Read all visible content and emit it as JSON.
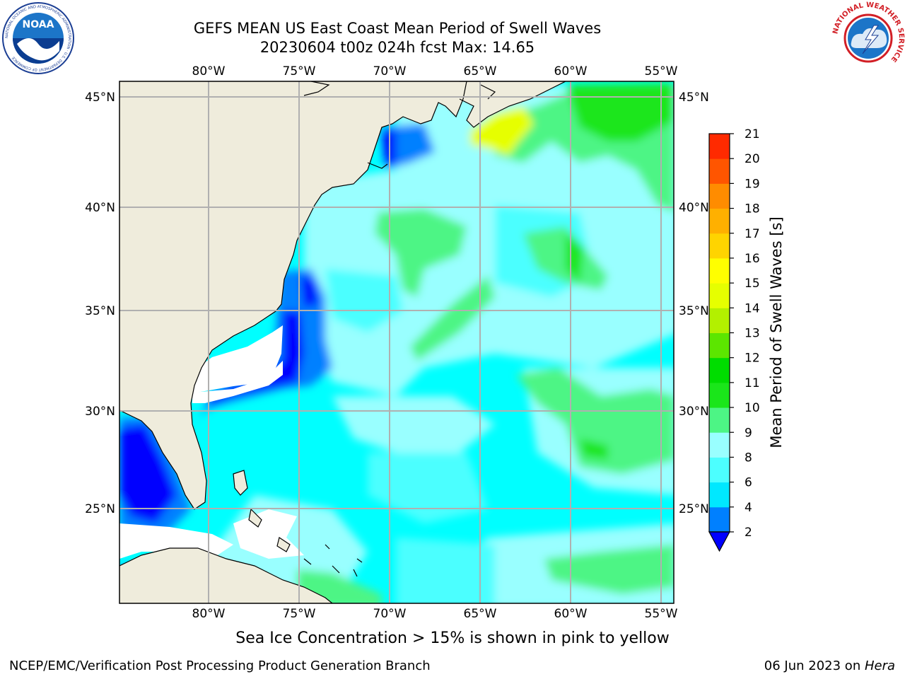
{
  "header": {
    "title_line1": "GEFS MEAN US East Coast Mean Period of Swell Waves",
    "title_line2": "20230604 t00z 024h fcst   Max: 14.65"
  },
  "logos": {
    "noaa": {
      "text": "NOAA",
      "ring_text": "NATIONAL OCEANIC AND ATMOSPHERIC ADMINISTRATION · U.S. DEPARTMENT OF COMMERCE",
      "icon": "noaa-logo"
    },
    "nws": {
      "ring_text": "NATIONAL WEATHER SERVICE",
      "icon": "nws-logo"
    }
  },
  "map": {
    "lon_labels": [
      "80°W",
      "75°W",
      "70°W",
      "65°W",
      "60°W",
      "55°W"
    ],
    "lat_labels": [
      "45°N",
      "40°N",
      "35°N",
      "30°N",
      "25°N"
    ],
    "colors": {
      "land": "#efecdc",
      "ocean_base": "#00ffff",
      "grid": "#b0b0b0",
      "no_data": "#ffffff"
    }
  },
  "colorbar": {
    "label": "Mean Period of Swell Waves [s]",
    "ticks": [
      "2",
      "4",
      "6",
      "8",
      "9",
      "10",
      "11",
      "12",
      "13",
      "14",
      "15",
      "16",
      "17",
      "18",
      "19",
      "20",
      "21"
    ],
    "colors": [
      "#0000ff",
      "#0080ff",
      "#00e8ff",
      "#4cffff",
      "#99ffff",
      "#4df585",
      "#1ae61a",
      "#00dd00",
      "#5ce600",
      "#b3f000",
      "#e6ff00",
      "#ffff00",
      "#ffd400",
      "#ffb000",
      "#ff8c00",
      "#ff5500",
      "#ff2a00",
      "#ff0000"
    ],
    "underflow_color": "#0000ff"
  },
  "footer": {
    "note": "Sea Ice Concentration > 15% is shown in pink to yellow",
    "left": "NCEP/EMC/Verification Post Processing Product Generation Branch",
    "right_date": "06 Jun 2023 on ",
    "right_machine": "Hera"
  }
}
